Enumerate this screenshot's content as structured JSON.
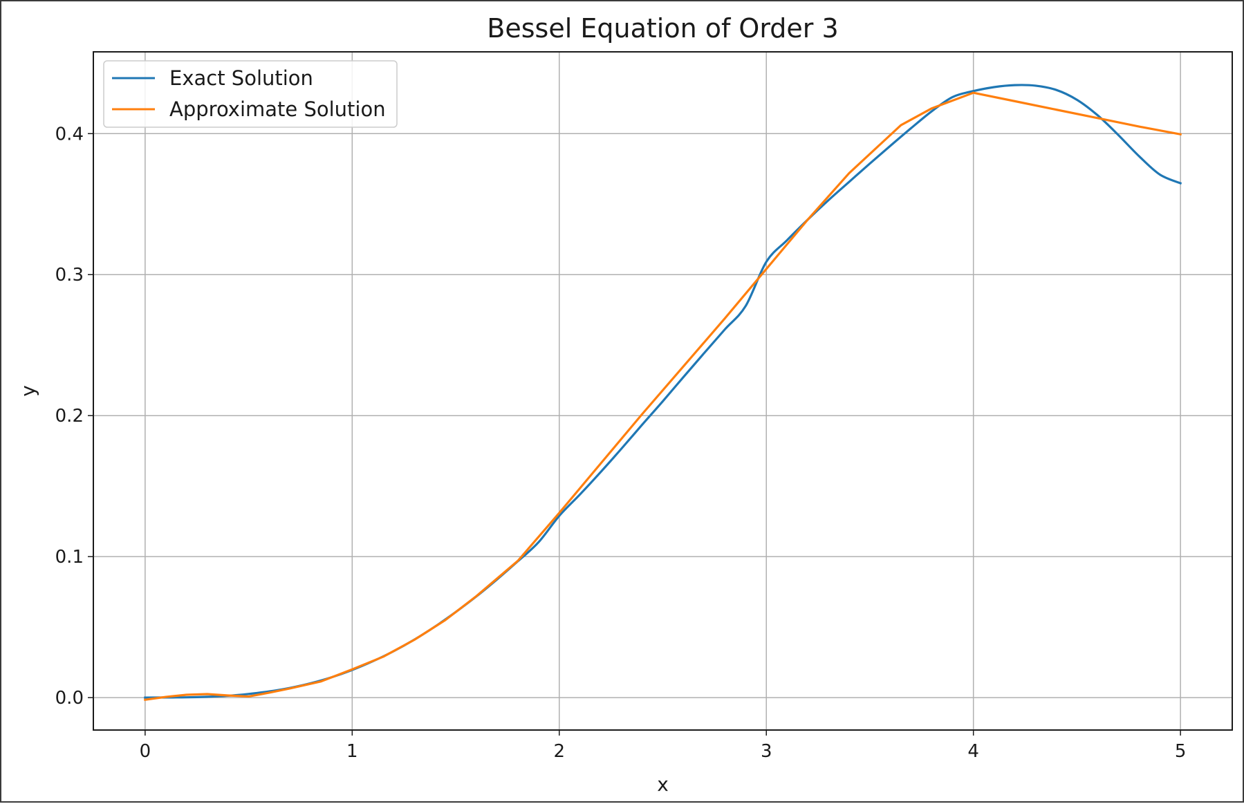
{
  "chart_data": {
    "type": "line",
    "title": "Bessel Equation of Order 3",
    "xlabel": "x",
    "ylabel": "y",
    "xlim": [
      -0.25,
      5.25
    ],
    "ylim": [
      -0.023,
      0.458
    ],
    "x_ticks": [
      "0",
      "1",
      "2",
      "3",
      "4",
      "5"
    ],
    "y_ticks": [
      "0.0",
      "0.1",
      "0.2",
      "0.3",
      "0.4"
    ],
    "grid": true,
    "legend_position": "upper-left",
    "series": [
      {
        "name": "Exact Solution",
        "color": "#1f77b4",
        "kind": "smooth",
        "x": [
          0,
          0.1,
          0.2,
          0.3,
          0.4,
          0.5,
          0.6,
          0.7,
          0.8,
          0.9,
          1.0,
          1.1,
          1.2,
          1.3,
          1.4,
          1.5,
          1.6,
          1.7,
          1.8,
          1.9,
          2.0,
          2.1,
          2.2,
          2.3,
          2.4,
          2.5,
          2.6,
          2.7,
          2.8,
          2.9,
          3.0,
          3.1,
          3.2,
          3.3,
          3.4,
          3.5,
          3.6,
          3.7,
          3.8,
          3.9,
          4.0,
          4.1,
          4.2,
          4.3,
          4.4,
          4.5,
          4.6,
          4.7,
          4.8,
          4.9,
          5.0
        ],
        "y": [
          0.0,
          0.0001,
          0.0002,
          0.0006,
          0.0013,
          0.0026,
          0.0044,
          0.0069,
          0.0102,
          0.0144,
          0.0196,
          0.0258,
          0.0329,
          0.0411,
          0.0504,
          0.0607,
          0.0718,
          0.0839,
          0.0967,
          0.1102,
          0.1289,
          0.1441,
          0.16,
          0.1765,
          0.1935,
          0.2102,
          0.2274,
          0.2444,
          0.2612,
          0.2777,
          0.3091,
          0.3244,
          0.339,
          0.3528,
          0.3658,
          0.3788,
          0.3915,
          0.404,
          0.416,
          0.426,
          0.4302,
          0.433,
          0.4344,
          0.434,
          0.431,
          0.424,
          0.413,
          0.399,
          0.384,
          0.371,
          0.3648
        ]
      },
      {
        "name": "Approximate Solution",
        "color": "#ff7f0e",
        "kind": "linear",
        "x": [
          0,
          0.1,
          0.2,
          0.3,
          0.4,
          0.5,
          0.6,
          0.7,
          0.85,
          1.0,
          1.15,
          1.3,
          1.45,
          1.6,
          1.8,
          2.0,
          2.2,
          2.4,
          2.6,
          2.8,
          3.0,
          3.2,
          3.4,
          3.65,
          3.8,
          4.0,
          4.2,
          4.4,
          4.6,
          4.8,
          5.0
        ],
        "y": [
          -0.0015,
          0.0005,
          0.002,
          0.0025,
          0.0015,
          0.0008,
          0.0035,
          0.0065,
          0.0115,
          0.02,
          0.029,
          0.041,
          0.055,
          0.072,
          0.097,
          0.131,
          0.166,
          0.201,
          0.235,
          0.269,
          0.304,
          0.339,
          0.372,
          0.406,
          0.418,
          0.429,
          0.423,
          0.417,
          0.411,
          0.405,
          0.3995
        ]
      }
    ]
  }
}
